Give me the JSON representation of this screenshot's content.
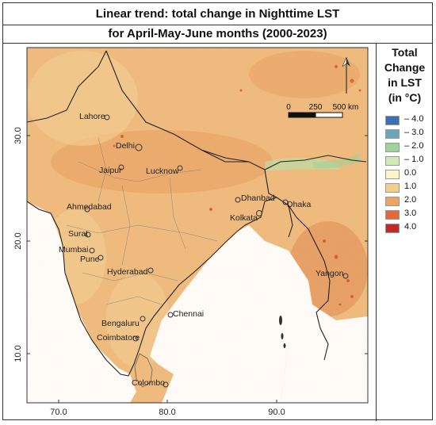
{
  "title": {
    "line1": "Linear trend: total change in Nighttime LST",
    "line2": "for April-May-June months (2000-2023)"
  },
  "legend": {
    "title_lines": [
      "Total",
      "Change",
      "in LST",
      "(in °C)"
    ],
    "entries": [
      {
        "label": "– 4.0",
        "color": "#3a6fb4"
      },
      {
        "label": "– 3.0",
        "color": "#6aa5b8"
      },
      {
        "label": "– 2.0",
        "color": "#9fd19a"
      },
      {
        "label": "– 1.0",
        "color": "#cfe9b7"
      },
      {
        "label": "0.0",
        "color": "#fbf7c5"
      },
      {
        "label": "1.0",
        "color": "#f2cf8a"
      },
      {
        "label": "2.0",
        "color": "#eca460"
      },
      {
        "label": "3.0",
        "color": "#df6a3a"
      },
      {
        "label": "4.0",
        "color": "#c02a22"
      }
    ]
  },
  "axes": {
    "lat_ticks": [
      "30.0",
      "20.0",
      "10.0"
    ],
    "lon_ticks": [
      "70.0",
      "80.0",
      "90.0"
    ]
  },
  "scale_bar": {
    "labels": [
      "0",
      "250",
      "500 km"
    ]
  },
  "cities": [
    {
      "name": "Lahore"
    },
    {
      "name": "Delhi"
    },
    {
      "name": "Jaipur"
    },
    {
      "name": "Lucknow"
    },
    {
      "name": "Ahmedabad"
    },
    {
      "name": "Dhanbad"
    },
    {
      "name": "Kolkata"
    },
    {
      "name": "Dhaka"
    },
    {
      "name": "Surat"
    },
    {
      "name": "Mumbai"
    },
    {
      "name": "Pune"
    },
    {
      "name": "Hyderabad"
    },
    {
      "name": "Yangon"
    },
    {
      "name": "Chennai"
    },
    {
      "name": "Bengaluru"
    },
    {
      "name": "Coimbatore"
    },
    {
      "name": "Colombo"
    }
  ],
  "colors": {
    "land_base": "#eeb97c",
    "land_hot": "#e8a262",
    "land_warm": "#f3cf93",
    "cool": "#b7dfa8",
    "outside": "#ffffff"
  }
}
